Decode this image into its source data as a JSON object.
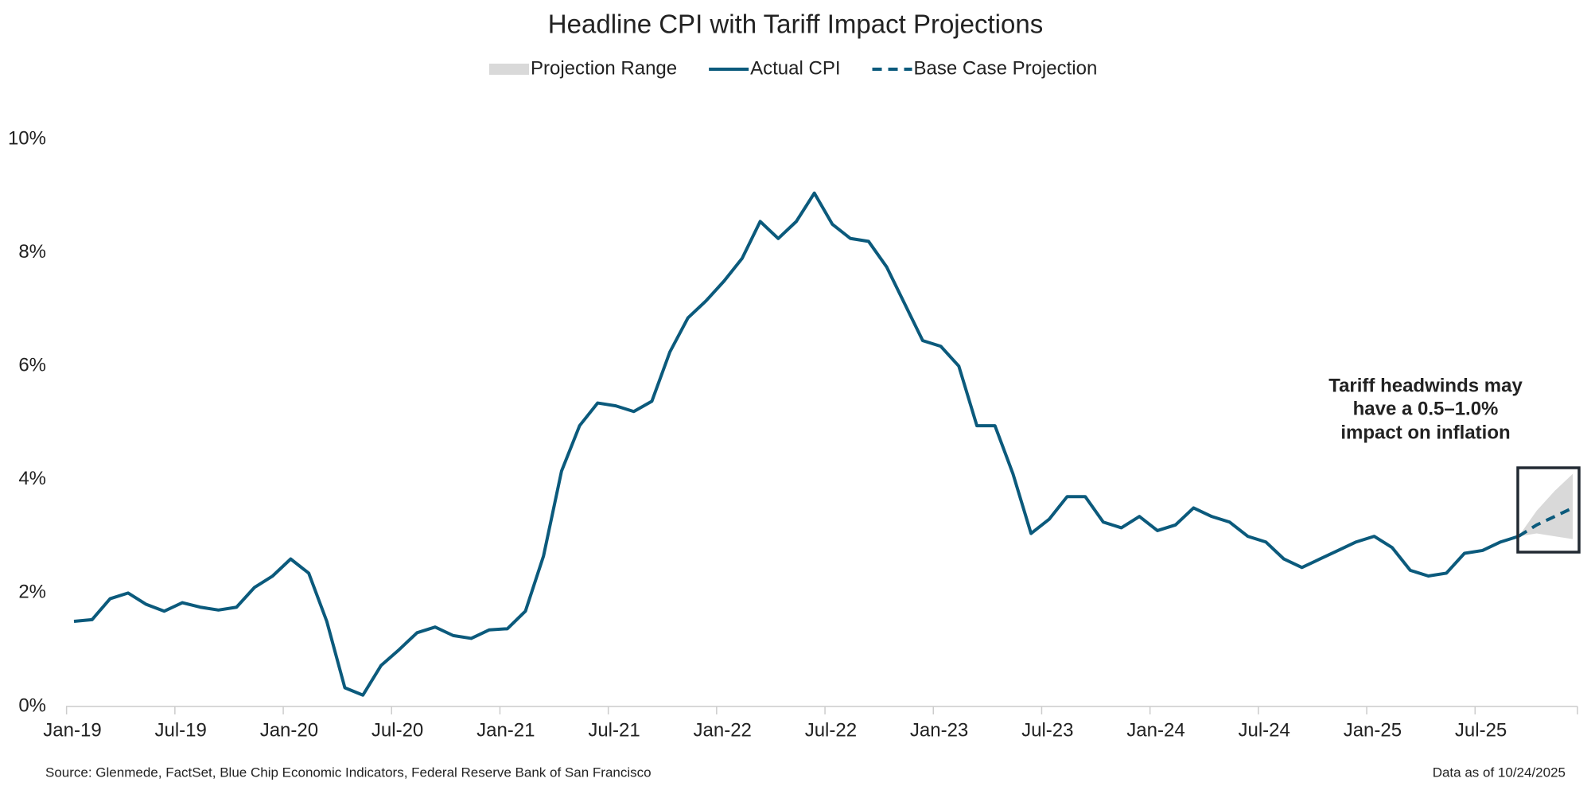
{
  "chart_data": {
    "type": "line",
    "title": "Headline CPI with Tariff Impact Projections",
    "categories": [
      "Jan-19",
      null,
      null,
      null,
      null,
      null,
      "Jul-19",
      null,
      null,
      null,
      null,
      null,
      "Jan-20",
      null,
      null,
      null,
      null,
      null,
      "Jul-20",
      null,
      null,
      null,
      null,
      null,
      "Jan-21",
      null,
      null,
      null,
      null,
      null,
      "Jul-21",
      null,
      null,
      null,
      null,
      null,
      "Jan-22",
      null,
      null,
      null,
      null,
      null,
      "Jul-22",
      null,
      null,
      null,
      null,
      null,
      "Jan-23",
      null,
      null,
      null,
      null,
      null,
      "Jul-23",
      null,
      null,
      null,
      null,
      null,
      "Jan-24",
      null,
      null,
      null,
      null,
      null,
      "Jul-24",
      null,
      null,
      null,
      null,
      null,
      "Jan-25",
      null,
      null,
      null,
      null,
      null,
      "Jul-25",
      null,
      null,
      null,
      null,
      null
    ],
    "range": {
      "name": "Projection Range",
      "color": "#d9d9d9",
      "high": [
        null,
        null,
        null,
        null,
        null,
        null,
        null,
        null,
        null,
        null,
        null,
        null,
        null,
        null,
        null,
        null,
        null,
        null,
        null,
        null,
        null,
        null,
        null,
        null,
        null,
        null,
        null,
        null,
        null,
        null,
        null,
        null,
        null,
        null,
        null,
        null,
        null,
        null,
        null,
        null,
        null,
        null,
        null,
        null,
        null,
        null,
        null,
        null,
        null,
        null,
        null,
        null,
        null,
        null,
        null,
        null,
        null,
        null,
        null,
        null,
        null,
        null,
        null,
        null,
        null,
        null,
        null,
        null,
        null,
        null,
        null,
        null,
        null,
        null,
        null,
        null,
        null,
        null,
        null,
        null,
        3.0,
        3.45,
        3.8,
        4.1
      ],
      "low": [
        null,
        null,
        null,
        null,
        null,
        null,
        null,
        null,
        null,
        null,
        null,
        null,
        null,
        null,
        null,
        null,
        null,
        null,
        null,
        null,
        null,
        null,
        null,
        null,
        null,
        null,
        null,
        null,
        null,
        null,
        null,
        null,
        null,
        null,
        null,
        null,
        null,
        null,
        null,
        null,
        null,
        null,
        null,
        null,
        null,
        null,
        null,
        null,
        null,
        null,
        null,
        null,
        null,
        null,
        null,
        null,
        null,
        null,
        null,
        null,
        null,
        null,
        null,
        null,
        null,
        null,
        null,
        null,
        null,
        null,
        null,
        null,
        null,
        null,
        null,
        null,
        null,
        null,
        null,
        null,
        3.0,
        3.05,
        3.0,
        2.95
      ]
    },
    "series": [
      {
        "name": "Actual CPI",
        "color": "#0b5a7c",
        "dashed": false,
        "values": [
          1.5,
          1.53,
          1.9,
          2.0,
          1.8,
          1.68,
          1.83,
          1.75,
          1.7,
          1.75,
          2.1,
          2.3,
          2.6,
          2.35,
          1.5,
          0.33,
          0.2,
          0.72,
          1.0,
          1.3,
          1.4,
          1.25,
          1.2,
          1.35,
          1.37,
          1.68,
          2.65,
          4.15,
          4.95,
          5.35,
          5.3,
          5.2,
          5.38,
          6.25,
          6.85,
          7.15,
          7.5,
          7.9,
          8.55,
          8.25,
          8.55,
          9.05,
          8.5,
          8.25,
          8.2,
          7.75,
          7.1,
          6.45,
          6.35,
          6.0,
          4.95,
          4.95,
          4.1,
          3.05,
          3.3,
          3.7,
          3.7,
          3.25,
          3.15,
          3.35,
          3.1,
          3.2,
          3.5,
          3.35,
          3.25,
          3.0,
          2.9,
          2.6,
          2.45,
          2.6,
          2.75,
          2.9,
          3.0,
          2.8,
          2.4,
          2.3,
          2.35,
          2.7,
          2.75,
          2.9,
          3.0,
          null,
          null,
          null
        ]
      },
      {
        "name": "Base Case Projection",
        "color": "#0b5a7c",
        "dashed": true,
        "values": [
          null,
          null,
          null,
          null,
          null,
          null,
          null,
          null,
          null,
          null,
          null,
          null,
          null,
          null,
          null,
          null,
          null,
          null,
          null,
          null,
          null,
          null,
          null,
          null,
          null,
          null,
          null,
          null,
          null,
          null,
          null,
          null,
          null,
          null,
          null,
          null,
          null,
          null,
          null,
          null,
          null,
          null,
          null,
          null,
          null,
          null,
          null,
          null,
          null,
          null,
          null,
          null,
          null,
          null,
          null,
          null,
          null,
          null,
          null,
          null,
          null,
          null,
          null,
          null,
          null,
          null,
          null,
          null,
          null,
          null,
          null,
          null,
          null,
          null,
          null,
          null,
          null,
          null,
          null,
          null,
          3.0,
          3.2,
          3.35,
          3.5
        ]
      }
    ],
    "ylim": [
      0,
      10
    ],
    "yticks": [
      {
        "value": 0,
        "label": "0%"
      },
      {
        "value": 2,
        "label": "2%"
      },
      {
        "value": 4,
        "label": "4%"
      },
      {
        "value": 6,
        "label": "6%"
      },
      {
        "value": 8,
        "label": "8%"
      },
      {
        "value": 10,
        "label": "10%"
      }
    ],
    "annotation": [
      "Tariff headwinds may",
      "have a 0.5–1.0%",
      "impact on inflation"
    ],
    "source": "Source: Glenmede, FactSet, Blue Chip Economic Indicators, Federal Reserve Bank of San Francisco",
    "date_note": "Data as of 10/24/2025"
  }
}
